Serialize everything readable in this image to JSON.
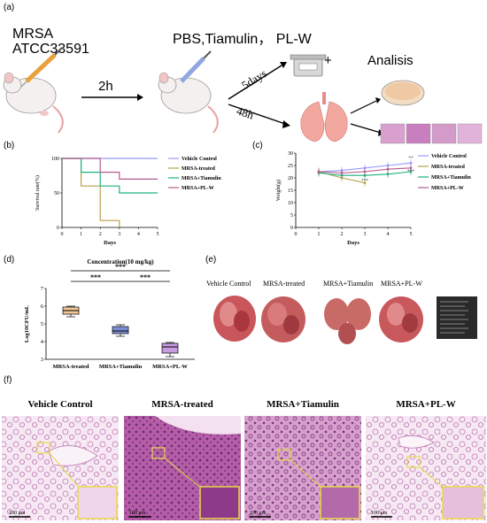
{
  "panel_a": {
    "label": "(a)",
    "mrsa_line1": "MRSA",
    "mrsa_line2": "ATCC33591",
    "treatments": "PBS,Tiamulin， PL-W",
    "time_2h": "2h",
    "time_5days": "5days",
    "time_48h": "48h",
    "plus": "+",
    "analysis": "Analisis"
  },
  "panel_b": {
    "label": "(b)"
  },
  "panel_c": {
    "label": "(c)"
  },
  "panel_d": {
    "label": "(d)"
  },
  "panel_e": {
    "label": "(e)",
    "groups": [
      "Vehicle Control",
      "MRSA-treated",
      "MRSA+Tiamulin",
      "MRSA+PL-W"
    ]
  },
  "panel_f": {
    "label": "(f)",
    "groups": [
      "Vehicle Control",
      "MRSA-treated",
      "MRSA+Tiamulin",
      "MRSA+PL-W"
    ],
    "scale": "100 μm"
  },
  "colors": {
    "vehicle": "#9999ff",
    "mrsa": "#b8a14a",
    "tiamulin": "#1bb47e",
    "plw": "#b45b8f",
    "box_mrsa": "#f2c89a",
    "box_tiamulin": "#7b8fd6",
    "box_plw": "#c69be0",
    "zoom": "#e8d94a"
  },
  "chart_data": [
    {
      "type": "line",
      "panel": "b",
      "xlabel": "Days",
      "ylabel": "Survival rate(%)",
      "xlim": [
        0,
        5
      ],
      "ylim": [
        0,
        100
      ],
      "x_ticks": [
        0,
        1,
        2,
        3,
        4,
        5
      ],
      "y_ticks": [
        0,
        50,
        100
      ],
      "step": true,
      "legend_position": "right",
      "series": [
        {
          "name": "Vehicle Control",
          "color": "#9999ff",
          "x": [
            0,
            5
          ],
          "y": [
            100,
            100
          ]
        },
        {
          "name": "MRSA-treated",
          "color": "#b8a14a",
          "x": [
            0,
            1,
            2,
            3
          ],
          "y": [
            100,
            60,
            10,
            0
          ]
        },
        {
          "name": "MRSA+Tiamulin",
          "color": "#1bb47e",
          "x": [
            0,
            1,
            2,
            3,
            5
          ],
          "y": [
            100,
            80,
            60,
            50,
            50
          ]
        },
        {
          "name": "MRSA+PL-W",
          "color": "#b45b8f",
          "x": [
            0,
            2,
            3,
            5
          ],
          "y": [
            100,
            80,
            70,
            70
          ]
        }
      ]
    },
    {
      "type": "line",
      "panel": "c",
      "xlabel": "Days",
      "ylabel": "Weight(g)",
      "xlim": [
        0,
        5
      ],
      "ylim": [
        0,
        30
      ],
      "x_ticks": [
        0,
        1,
        2,
        3,
        4,
        5
      ],
      "y_ticks": [
        0,
        5,
        10,
        15,
        20,
        25,
        30
      ],
      "legend_position": "right",
      "series": [
        {
          "name": "Vehicle Control",
          "color": "#9999ff",
          "x": [
            1,
            2,
            3,
            4,
            5
          ],
          "y": [
            22.5,
            23,
            24,
            25,
            26
          ]
        },
        {
          "name": "MRSA-treated",
          "color": "#b8a14a",
          "x": [
            1,
            2,
            3
          ],
          "y": [
            22.5,
            20,
            18
          ]
        },
        {
          "name": "MRSA+Tiamulin",
          "color": "#1bb47e",
          "x": [
            1,
            2,
            3,
            4,
            5
          ],
          "y": [
            22,
            21,
            21,
            21.5,
            22.5
          ]
        },
        {
          "name": "MRSA+PL-W",
          "color": "#b45b8f",
          "x": [
            1,
            2,
            3,
            4,
            5
          ],
          "y": [
            22.5,
            22,
            22.5,
            23.5,
            24
          ]
        }
      ],
      "annotations": [
        "***",
        "**",
        "***"
      ]
    },
    {
      "type": "box",
      "panel": "d",
      "title": "Concentration(10 mg/kg)",
      "ylabel": "Log10CFU/mL",
      "ylim": [
        3,
        7
      ],
      "y_ticks": [
        3,
        4,
        5,
        6,
        7
      ],
      "categories": [
        "MRSA-treated",
        "MRSA+Tiamulin",
        "MRSA+PL-W"
      ],
      "boxes": [
        {
          "min": 5.4,
          "q1": 5.55,
          "median": 5.75,
          "q3": 5.95,
          "max": 6.0
        },
        {
          "min": 4.3,
          "q1": 4.45,
          "median": 4.6,
          "q3": 4.85,
          "max": 4.95
        },
        {
          "min": 3.15,
          "q1": 3.35,
          "median": 3.7,
          "q3": 3.9,
          "max": 3.95
        }
      ],
      "significance": [
        "***",
        "***",
        "***"
      ]
    }
  ]
}
